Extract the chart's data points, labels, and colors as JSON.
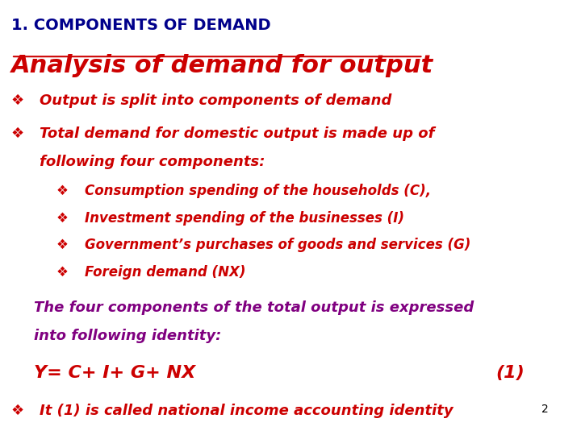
{
  "background_color": "#ffffff",
  "header_text": "1. COMPONENTS OF DEMAND",
  "header_color": "#00008B",
  "header_fontsize": 14,
  "title_text": "Analysis of demand for output",
  "title_color": "#CC0000",
  "title_fontsize": 22,
  "title_underline": true,
  "bullet_color": "#CC0000",
  "bullet_diamond": "❖",
  "bullet1": "Output is split into components of demand",
  "bullet2_line1": "Total demand for domestic output is made up of",
  "bullet2_line2": "following four components:",
  "sub_bullets": [
    "Consumption spending of the households (C),",
    "Investment spending of the businesses (I)",
    "Government’s purchases of goods and services (G)",
    "Foreign demand (NX)"
  ],
  "sub_bullet_indent": 0.1,
  "sub_sub_bullet_indent": 0.14,
  "paragraph_color": "#800080",
  "paragraph_line1": "The four components of the total output is expressed",
  "paragraph_line2": "into following identity:",
  "equation": "Y= C+ I+ G+ NX",
  "equation_number": "(1)",
  "equation_color": "#CC0000",
  "last_bullet_color": "#CC0000",
  "last_bullet_text": "It (1) is called national income accounting identity",
  "page_number": "2",
  "page_number_color": "#000000"
}
